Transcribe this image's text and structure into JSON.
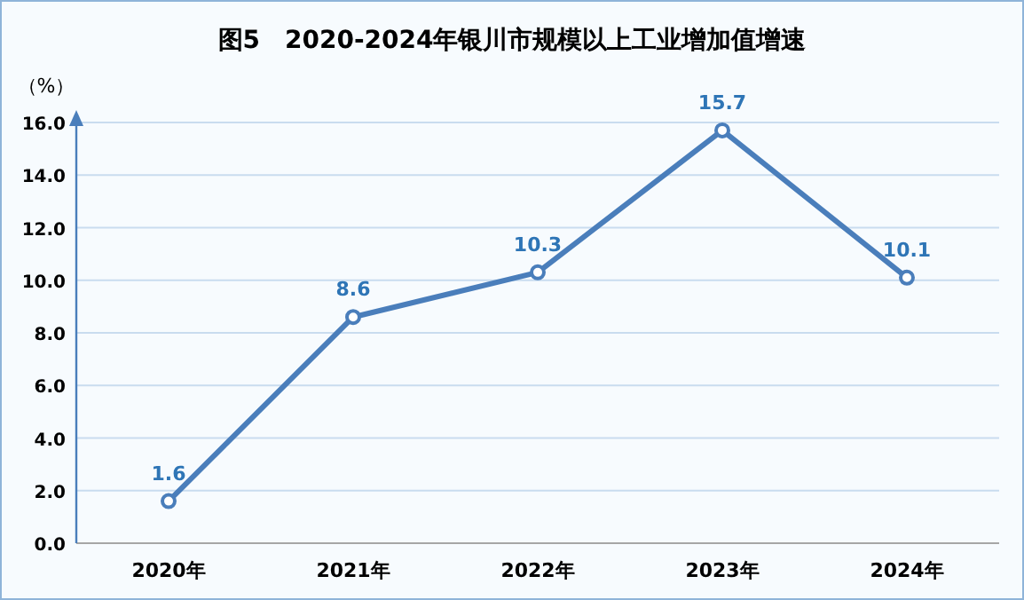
{
  "chart_data": {
    "type": "line",
    "title": "图5　2020-2024年银川市规模以上工业增加值增速",
    "ylabel": "（%）",
    "categories": [
      "2020年",
      "2021年",
      "2022年",
      "2023年",
      "2024年"
    ],
    "values": [
      1.6,
      8.6,
      10.3,
      15.7,
      10.1
    ],
    "color": "#4a7ebb",
    "data_labels": true,
    "marker": "circle",
    "grid": "y",
    "ylim": [
      0,
      16
    ],
    "yticks": [
      {
        "value": 0,
        "label": "0.0"
      },
      {
        "value": 2,
        "label": "2.0"
      },
      {
        "value": 4,
        "label": "4.0"
      },
      {
        "value": 6,
        "label": "6.0"
      },
      {
        "value": 8,
        "label": "8.0"
      },
      {
        "value": 10,
        "label": "10.0"
      },
      {
        "value": 12,
        "label": "12.0"
      },
      {
        "value": 14,
        "label": "14.0"
      },
      {
        "value": 16,
        "label": "16.0"
      }
    ]
  }
}
